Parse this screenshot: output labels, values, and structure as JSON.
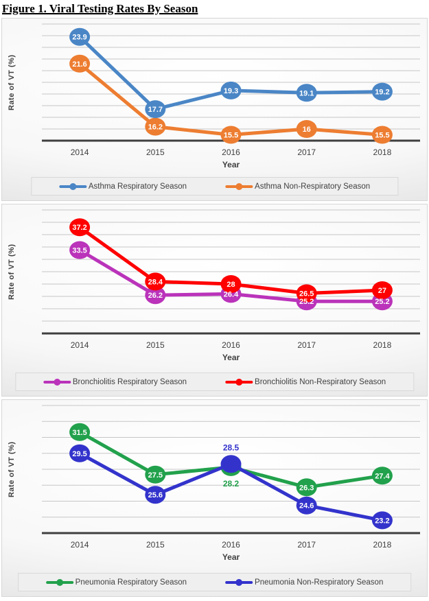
{
  "page": {
    "title": "Figure 1. Viral Testing Rates By Season"
  },
  "chart_data": [
    {
      "type": "line",
      "title": "Asthma viral testing rate by season",
      "xlabel": "Year",
      "ylabel": "Rate of VT (%)",
      "categories": [
        "2014",
        "2015",
        "2016",
        "2017",
        "2018"
      ],
      "ylim": [
        15,
        25
      ],
      "grid_step": 1,
      "grid": true,
      "legend_position": "bottom",
      "series": [
        {
          "name": "Asthma Respiratory Season",
          "color": "#4A86C6",
          "values": [
            23.9,
            17.7,
            19.3,
            19.1,
            19.2
          ],
          "label_placement": [
            "in",
            "in",
            "in",
            "in",
            "in"
          ]
        },
        {
          "name": "Asthma Non-Respiratory Season",
          "color": "#ED7D31",
          "values": [
            21.6,
            16.2,
            15.5,
            16,
            15.5
          ],
          "label_placement": [
            "in",
            "in",
            "in",
            "in",
            "in"
          ]
        }
      ]
    },
    {
      "type": "line",
      "title": "Bronchiolitis viral testing rate by season",
      "xlabel": "Year",
      "ylabel": "Rate of VT (%)",
      "categories": [
        "2014",
        "2015",
        "2016",
        "2017",
        "2018"
      ],
      "ylim": [
        20,
        40
      ],
      "grid_step": 2,
      "grid": true,
      "legend_position": "bottom",
      "series": [
        {
          "name": "Bronchiolitis Respiratory Season",
          "color": "#BA33BA",
          "values": [
            33.5,
            26.2,
            26.4,
            25.2,
            25.2
          ],
          "label_placement": [
            "in",
            "in",
            "in",
            "in",
            "in"
          ]
        },
        {
          "name": "Bronchiolitis Non-Respiratory Season",
          "color": "#FE0000",
          "values": [
            37.2,
            28.4,
            28,
            26.5,
            27
          ],
          "label_placement": [
            "in",
            "in",
            "in",
            "in",
            "in"
          ]
        }
      ]
    },
    {
      "type": "line",
      "title": "Pneumonia viral testing rate by season",
      "xlabel": "Year",
      "ylabel": "Rate of VT (%)",
      "categories": [
        "2014",
        "2015",
        "2016",
        "2017",
        "2018"
      ],
      "ylim": [
        22,
        34
      ],
      "grid_step": 1.5,
      "grid": true,
      "legend_position": "bottom",
      "series": [
        {
          "name": "Pneumonia Respiratory Season",
          "color": "#22A14C",
          "values": [
            31.5,
            27.5,
            28.2,
            26.3,
            27.4
          ],
          "label_placement": [
            "in",
            "in",
            "below",
            "in",
            "in"
          ]
        },
        {
          "name": "Pneumonia Non-Respiratory Season",
          "color": "#3333CC",
          "values": [
            29.5,
            25.6,
            28.5,
            24.6,
            23.2
          ],
          "label_placement": [
            "in",
            "in",
            "above",
            "in",
            "in"
          ]
        }
      ]
    }
  ]
}
